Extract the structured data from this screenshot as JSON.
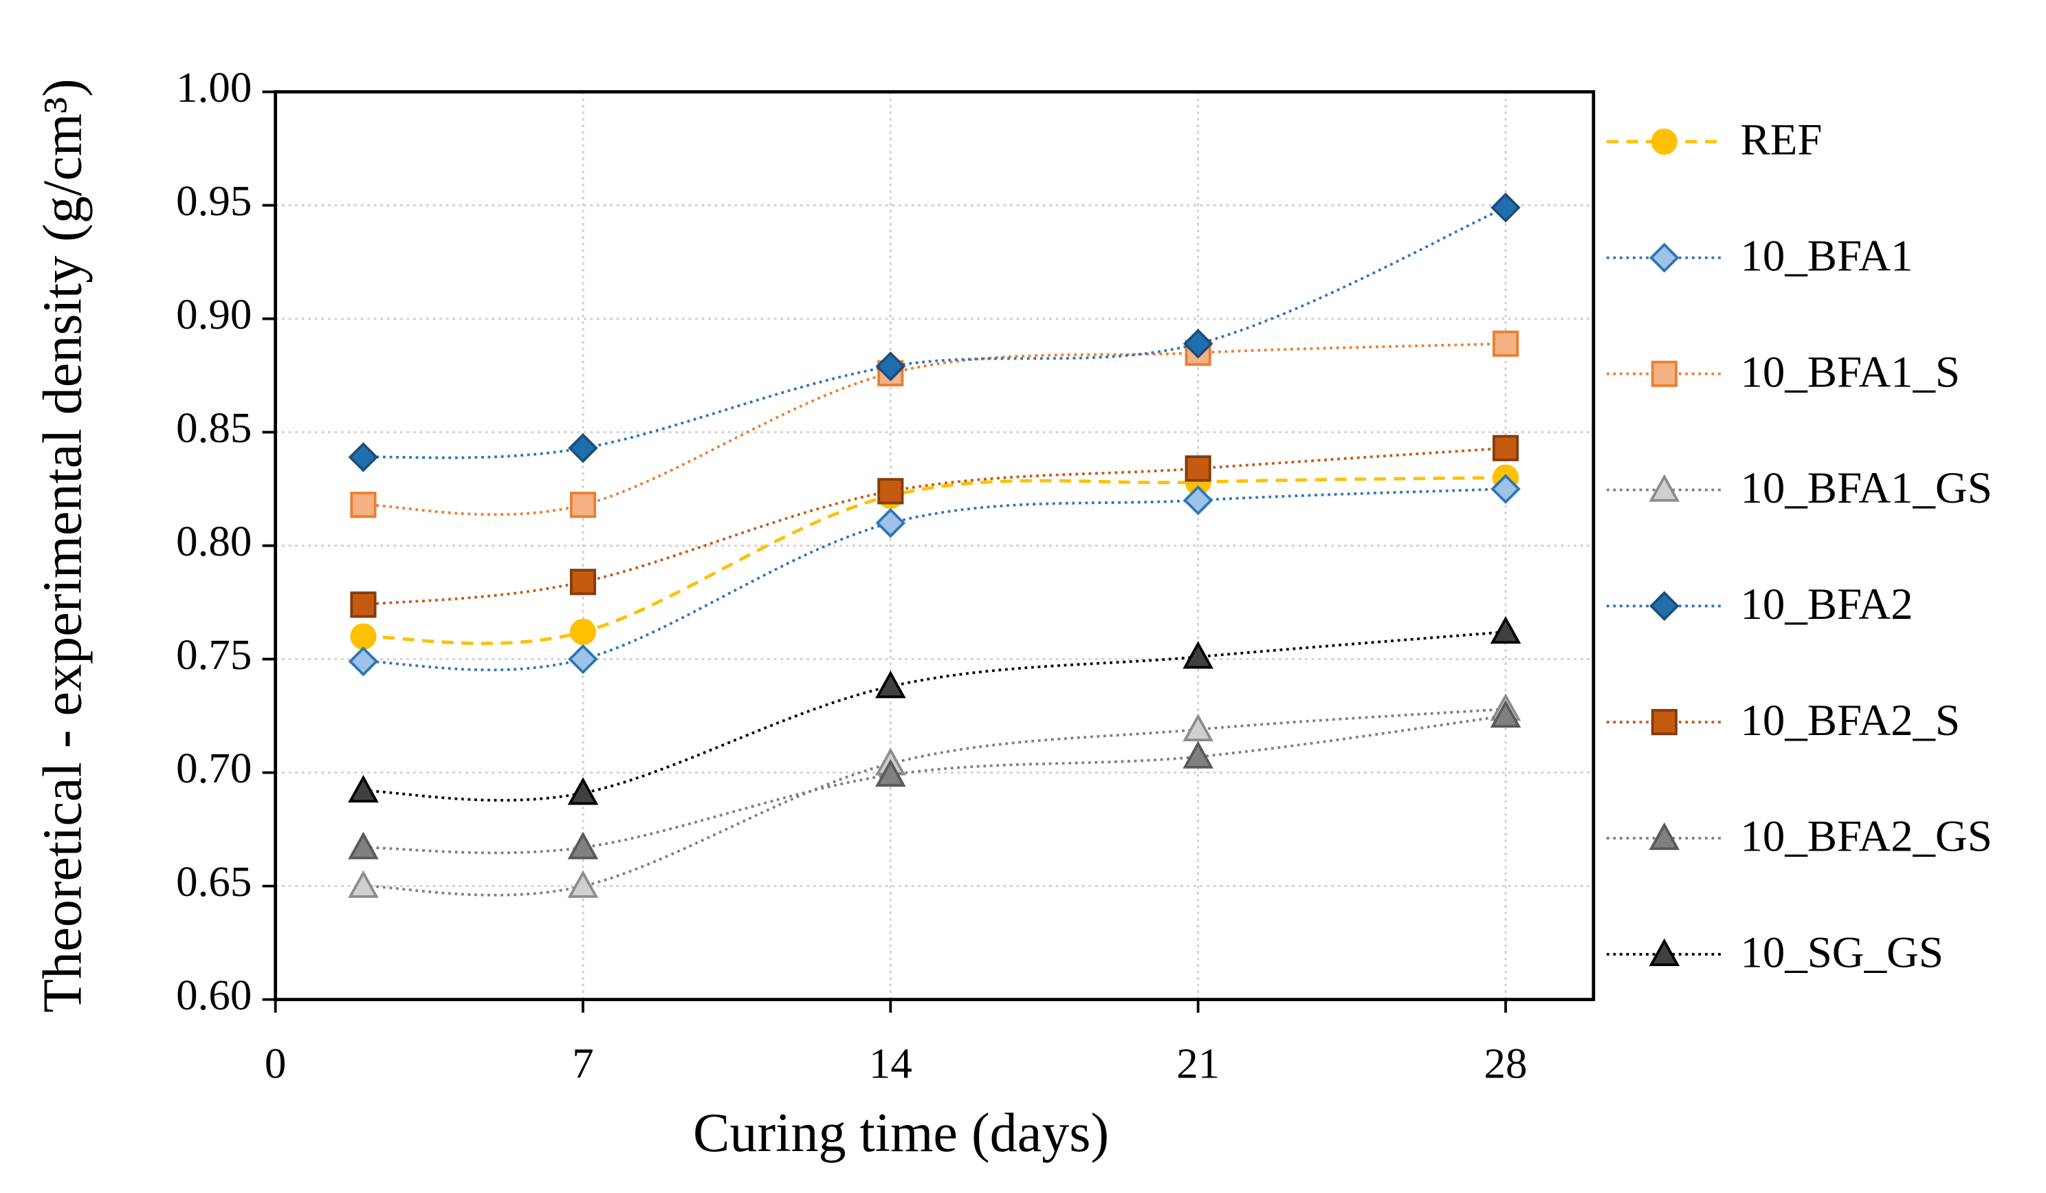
{
  "chart_data": {
    "type": "line",
    "xlabel": "Curing time (days)",
    "ylabel": "Theoretical - experimental density (g/cm³)",
    "x": [
      2,
      7,
      14,
      21,
      28
    ],
    "xlim": [
      0,
      30
    ],
    "xticks": [
      0,
      7,
      14,
      21,
      28
    ],
    "ylim": [
      0.6,
      1.0
    ],
    "yticks": [
      {
        "value": 0.6,
        "label": "0.60"
      },
      {
        "value": 0.65,
        "label": "0.65"
      },
      {
        "value": 0.7,
        "label": "0.70"
      },
      {
        "value": 0.75,
        "label": "0.75"
      },
      {
        "value": 0.8,
        "label": "0.80"
      },
      {
        "value": 0.85,
        "label": "0.85"
      },
      {
        "value": 0.9,
        "label": "0.90"
      },
      {
        "value": 0.95,
        "label": "0.95"
      },
      {
        "value": 1.0,
        "label": "1.00"
      }
    ],
    "grid": true,
    "legend": "right",
    "series": [
      {
        "name": "REF",
        "color": "#FFC000",
        "marker": "circle",
        "marker_fill": "#FFC000",
        "marker_edge": "#FFC000",
        "line_style": "dashed",
        "values": [
          0.76,
          0.762,
          0.822,
          0.828,
          0.83
        ]
      },
      {
        "name": "10_BFA1",
        "color": "#2E75B6",
        "marker": "diamond",
        "marker_fill": "#9DC3E6",
        "marker_edge": "#2E75B6",
        "line_style": "dotted",
        "values": [
          0.749,
          0.75,
          0.81,
          0.82,
          0.825
        ]
      },
      {
        "name": "10_BFA1_S",
        "color": "#ED7D31",
        "marker": "square",
        "marker_fill": "#F4B183",
        "marker_edge": "#ED7D31",
        "line_style": "dotted",
        "values": [
          0.818,
          0.818,
          0.876,
          0.885,
          0.889
        ]
      },
      {
        "name": "10_BFA1_GS",
        "color": "#7F7F7F",
        "marker": "triangle",
        "marker_fill": "#D0D0D0",
        "marker_edge": "#8C8C8C",
        "line_style": "dotted",
        "values": [
          0.65,
          0.65,
          0.704,
          0.719,
          0.728
        ]
      },
      {
        "name": "10_BFA2",
        "color": "#2E75B6",
        "marker": "diamond",
        "marker_fill": "#1F6FAE",
        "marker_edge": "#1F4E79",
        "line_style": "dotted",
        "values": [
          0.839,
          0.843,
          0.879,
          0.889,
          0.949
        ]
      },
      {
        "name": "10_BFA2_S",
        "color": "#C55A11",
        "marker": "square",
        "marker_fill": "#C55A11",
        "marker_edge": "#843C0C",
        "line_style": "dotted",
        "values": [
          0.774,
          0.784,
          0.824,
          0.834,
          0.843
        ]
      },
      {
        "name": "10_BFA2_GS",
        "color": "#7F7F7F",
        "marker": "triangle",
        "marker_fill": "#808080",
        "marker_edge": "#595959",
        "line_style": "dotted",
        "values": [
          0.667,
          0.667,
          0.699,
          0.707,
          0.725
        ]
      },
      {
        "name": "10_SG_GS",
        "color": "#000000",
        "marker": "triangle",
        "marker_fill": "#404040",
        "marker_edge": "#000000",
        "line_style": "dotted",
        "values": [
          0.692,
          0.691,
          0.738,
          0.751,
          0.762
        ]
      }
    ]
  }
}
